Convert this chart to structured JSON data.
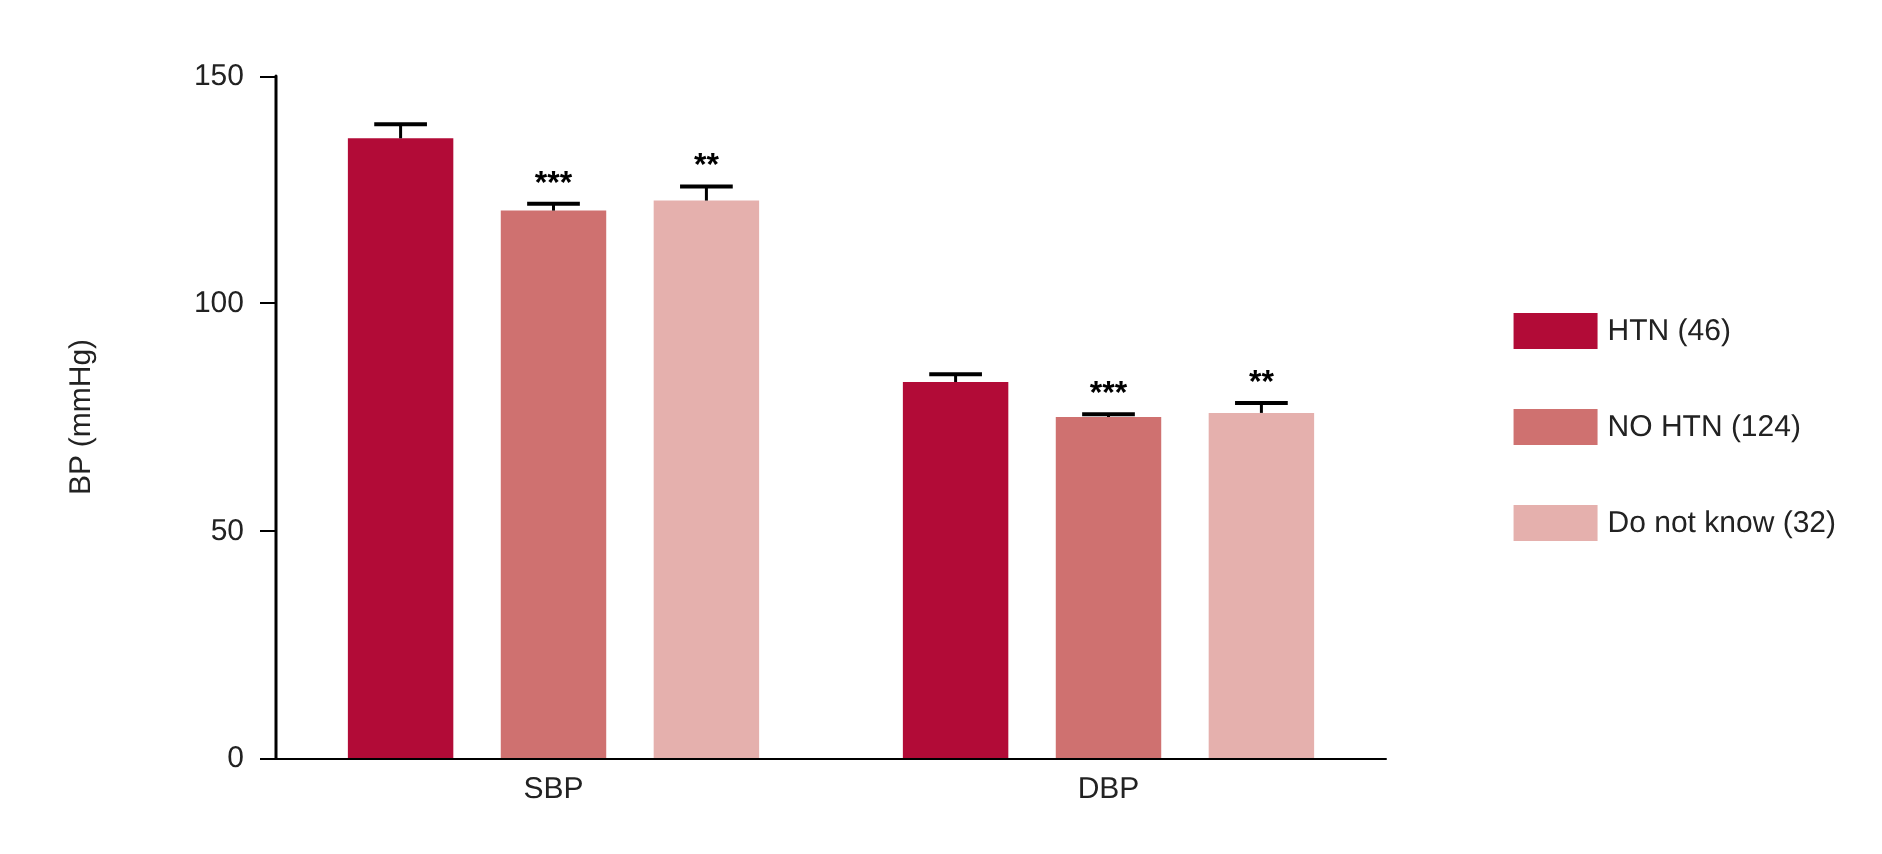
{
  "chart_data": {
    "type": "bar",
    "ylabel": "BP (mmHg)",
    "categories": [
      "SBP",
      "DBP"
    ],
    "series": [
      {
        "name": "HTN (46)",
        "color": "#b20b37",
        "values": [
          136.3,
          82.7
        ],
        "errors": [
          [
            136.3,
            139.4
          ],
          [
            82.7,
            84.4
          ]
        ]
      },
      {
        "name": "NO HTN (124)",
        "color": "#cf7170",
        "values": [
          120.4,
          75.0
        ],
        "errors": [
          [
            120.4,
            121.9
          ],
          [
            75.0,
            75.6
          ]
        ],
        "value_labels": [
          "***",
          "***"
        ]
      },
      {
        "name": "Do not know (32)",
        "color": "#e5b0ad",
        "values": [
          122.6,
          75.9
        ],
        "errors": [
          [
            122.6,
            125.7
          ],
          [
            75.9,
            78.1
          ]
        ],
        "value_labels": [
          "**",
          "**"
        ]
      }
    ],
    "ylim": [
      0,
      150
    ],
    "yticks": [
      0,
      50,
      100,
      150
    ],
    "grid": false,
    "legend": "right"
  }
}
